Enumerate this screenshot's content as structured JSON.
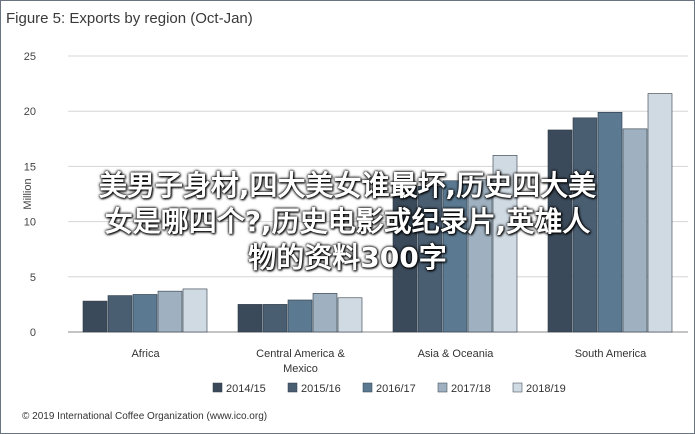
{
  "chart_data": {
    "type": "bar",
    "title": "Figure 5: Exports by region (Oct-Jan)",
    "xlabel": "",
    "ylabel": "Million",
    "ylim": [
      0,
      25
    ],
    "yticks": [
      0,
      5,
      10,
      15,
      20,
      25
    ],
    "grid": true,
    "legend_position": "bottom",
    "categories": [
      "Africa",
      "Central America & Mexico",
      "Asia & Oceania",
      "South America"
    ],
    "category_lines": [
      [
        "Africa"
      ],
      [
        "Central America &",
        "Mexico"
      ],
      [
        "Asia & Oceania"
      ],
      [
        "South America"
      ]
    ],
    "series": [
      {
        "name": "2014/15",
        "color": "#3b4a5a",
        "values": [
          2.8,
          2.5,
          13.2,
          18.3
        ]
      },
      {
        "name": "2015/16",
        "color": "#4a5e72",
        "values": [
          3.3,
          2.5,
          13.2,
          19.4
        ]
      },
      {
        "name": "2016/17",
        "color": "#5b7a92",
        "values": [
          3.4,
          2.9,
          13.7,
          19.9
        ]
      },
      {
        "name": "2017/18",
        "color": "#9fb1c1",
        "values": [
          3.7,
          3.5,
          13.8,
          18.4
        ]
      },
      {
        "name": "2018/19",
        "color": "#d0dae3",
        "values": [
          3.9,
          3.1,
          16.0,
          21.6
        ]
      }
    ]
  },
  "credit": "© 2019 International Coffee Organization (www.ico.org)",
  "overlay_text": {
    "line1": "美男子身材,四大美女谁最坏,历史四大美",
    "line2": "女是哪四个?,历史电影或纪录片,英雄人",
    "line3": "物的资料300字"
  }
}
